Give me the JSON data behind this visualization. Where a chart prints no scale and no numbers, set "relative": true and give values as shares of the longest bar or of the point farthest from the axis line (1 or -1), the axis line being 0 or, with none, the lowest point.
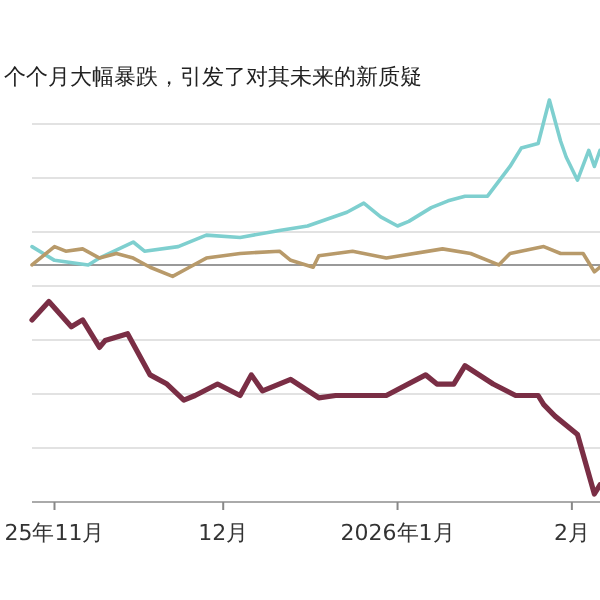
{
  "chart_data": {
    "type": "line",
    "title": "个个月大幅暴跌，引发了对其未来的新质疑",
    "relative": true,
    "grid": "y",
    "tick_labels": "x",
    "xlim": [
      "2025-10-28",
      "2026-02-06"
    ],
    "xticks": [
      {
        "value": "2025-11-01",
        "label": "25年11月"
      },
      {
        "value": "2025-12-01",
        "label": "12月"
      },
      {
        "value": "2026-01-01",
        "label": "2026年1月"
      },
      {
        "value": "2026-02-01",
        "label": "2月"
      }
    ],
    "series": [
      {
        "color": "#7ecfcf",
        "x": [
          "2025-10-28",
          "2025-11-01",
          "2025-11-07",
          "2025-11-09",
          "2025-11-15",
          "2025-11-17",
          "2025-11-23",
          "2025-11-28",
          "2025-12-04",
          "2025-12-11",
          "2025-12-16",
          "2025-12-23",
          "2025-12-26",
          "2025-12-29",
          "2026-01-01",
          "2026-01-03",
          "2026-01-07",
          "2026-01-10",
          "2026-01-13",
          "2026-01-17",
          "2026-01-21",
          "2026-01-23",
          "2026-01-26",
          "2026-01-28",
          "2026-01-30",
          "2026-01-31",
          "2026-02-02",
          "2026-02-04",
          "2026-02-05",
          "2026-02-06"
        ],
        "values": [
          0.08,
          0.02,
          0.0,
          0.03,
          0.1,
          0.06,
          0.08,
          0.13,
          0.12,
          0.15,
          0.17,
          0.23,
          0.27,
          0.21,
          0.17,
          0.19,
          0.25,
          0.28,
          0.3,
          0.3,
          0.43,
          0.51,
          0.53,
          0.72,
          0.54,
          0.47,
          0.37,
          0.5,
          0.43,
          0.5
        ]
      },
      {
        "color": "#b89a6a",
        "x": [
          "2025-10-28",
          "2025-11-01",
          "2025-11-03",
          "2025-11-06",
          "2025-11-09",
          "2025-11-12",
          "2025-11-15",
          "2025-11-18",
          "2025-11-22",
          "2025-11-25",
          "2025-11-28",
          "2025-12-04",
          "2025-12-11",
          "2025-12-13",
          "2025-12-17",
          "2025-12-18",
          "2025-12-24",
          "2025-12-30",
          "2026-01-09",
          "2026-01-14",
          "2026-01-19",
          "2026-01-21",
          "2026-01-27",
          "2026-01-30",
          "2026-02-03",
          "2026-02-05",
          "2026-02-06"
        ],
        "values": [
          0.0,
          0.08,
          0.06,
          0.07,
          0.03,
          0.05,
          0.03,
          -0.01,
          -0.05,
          -0.01,
          0.03,
          0.05,
          0.06,
          0.02,
          -0.01,
          0.04,
          0.06,
          0.03,
          0.07,
          0.05,
          0.0,
          0.05,
          0.08,
          0.05,
          0.05,
          -0.03,
          -0.01
        ]
      },
      {
        "color": "#7a2e45",
        "x": [
          "2025-10-28",
          "2025-10-31",
          "2025-11-04",
          "2025-11-06",
          "2025-11-09",
          "2025-11-10",
          "2025-11-14",
          "2025-11-18",
          "2025-11-21",
          "2025-11-24",
          "2025-11-26",
          "2025-11-30",
          "2025-12-04",
          "2025-12-06",
          "2025-12-08",
          "2025-12-13",
          "2025-12-18",
          "2025-12-21",
          "2025-12-30",
          "2026-01-06",
          "2026-01-08",
          "2026-01-11",
          "2026-01-13",
          "2026-01-18",
          "2026-01-22",
          "2026-01-26",
          "2026-01-27",
          "2026-01-29",
          "2026-02-02",
          "2026-02-05",
          "2026-02-06"
        ],
        "values": [
          -0.24,
          -0.16,
          -0.27,
          -0.24,
          -0.36,
          -0.33,
          -0.3,
          -0.48,
          -0.52,
          -0.59,
          -0.57,
          -0.52,
          -0.57,
          -0.48,
          -0.55,
          -0.5,
          -0.58,
          -0.57,
          -0.57,
          -0.48,
          -0.52,
          -0.52,
          -0.44,
          -0.52,
          -0.57,
          -0.57,
          -0.61,
          -0.66,
          -0.74,
          -1.0,
          -0.96
        ]
      }
    ]
  }
}
